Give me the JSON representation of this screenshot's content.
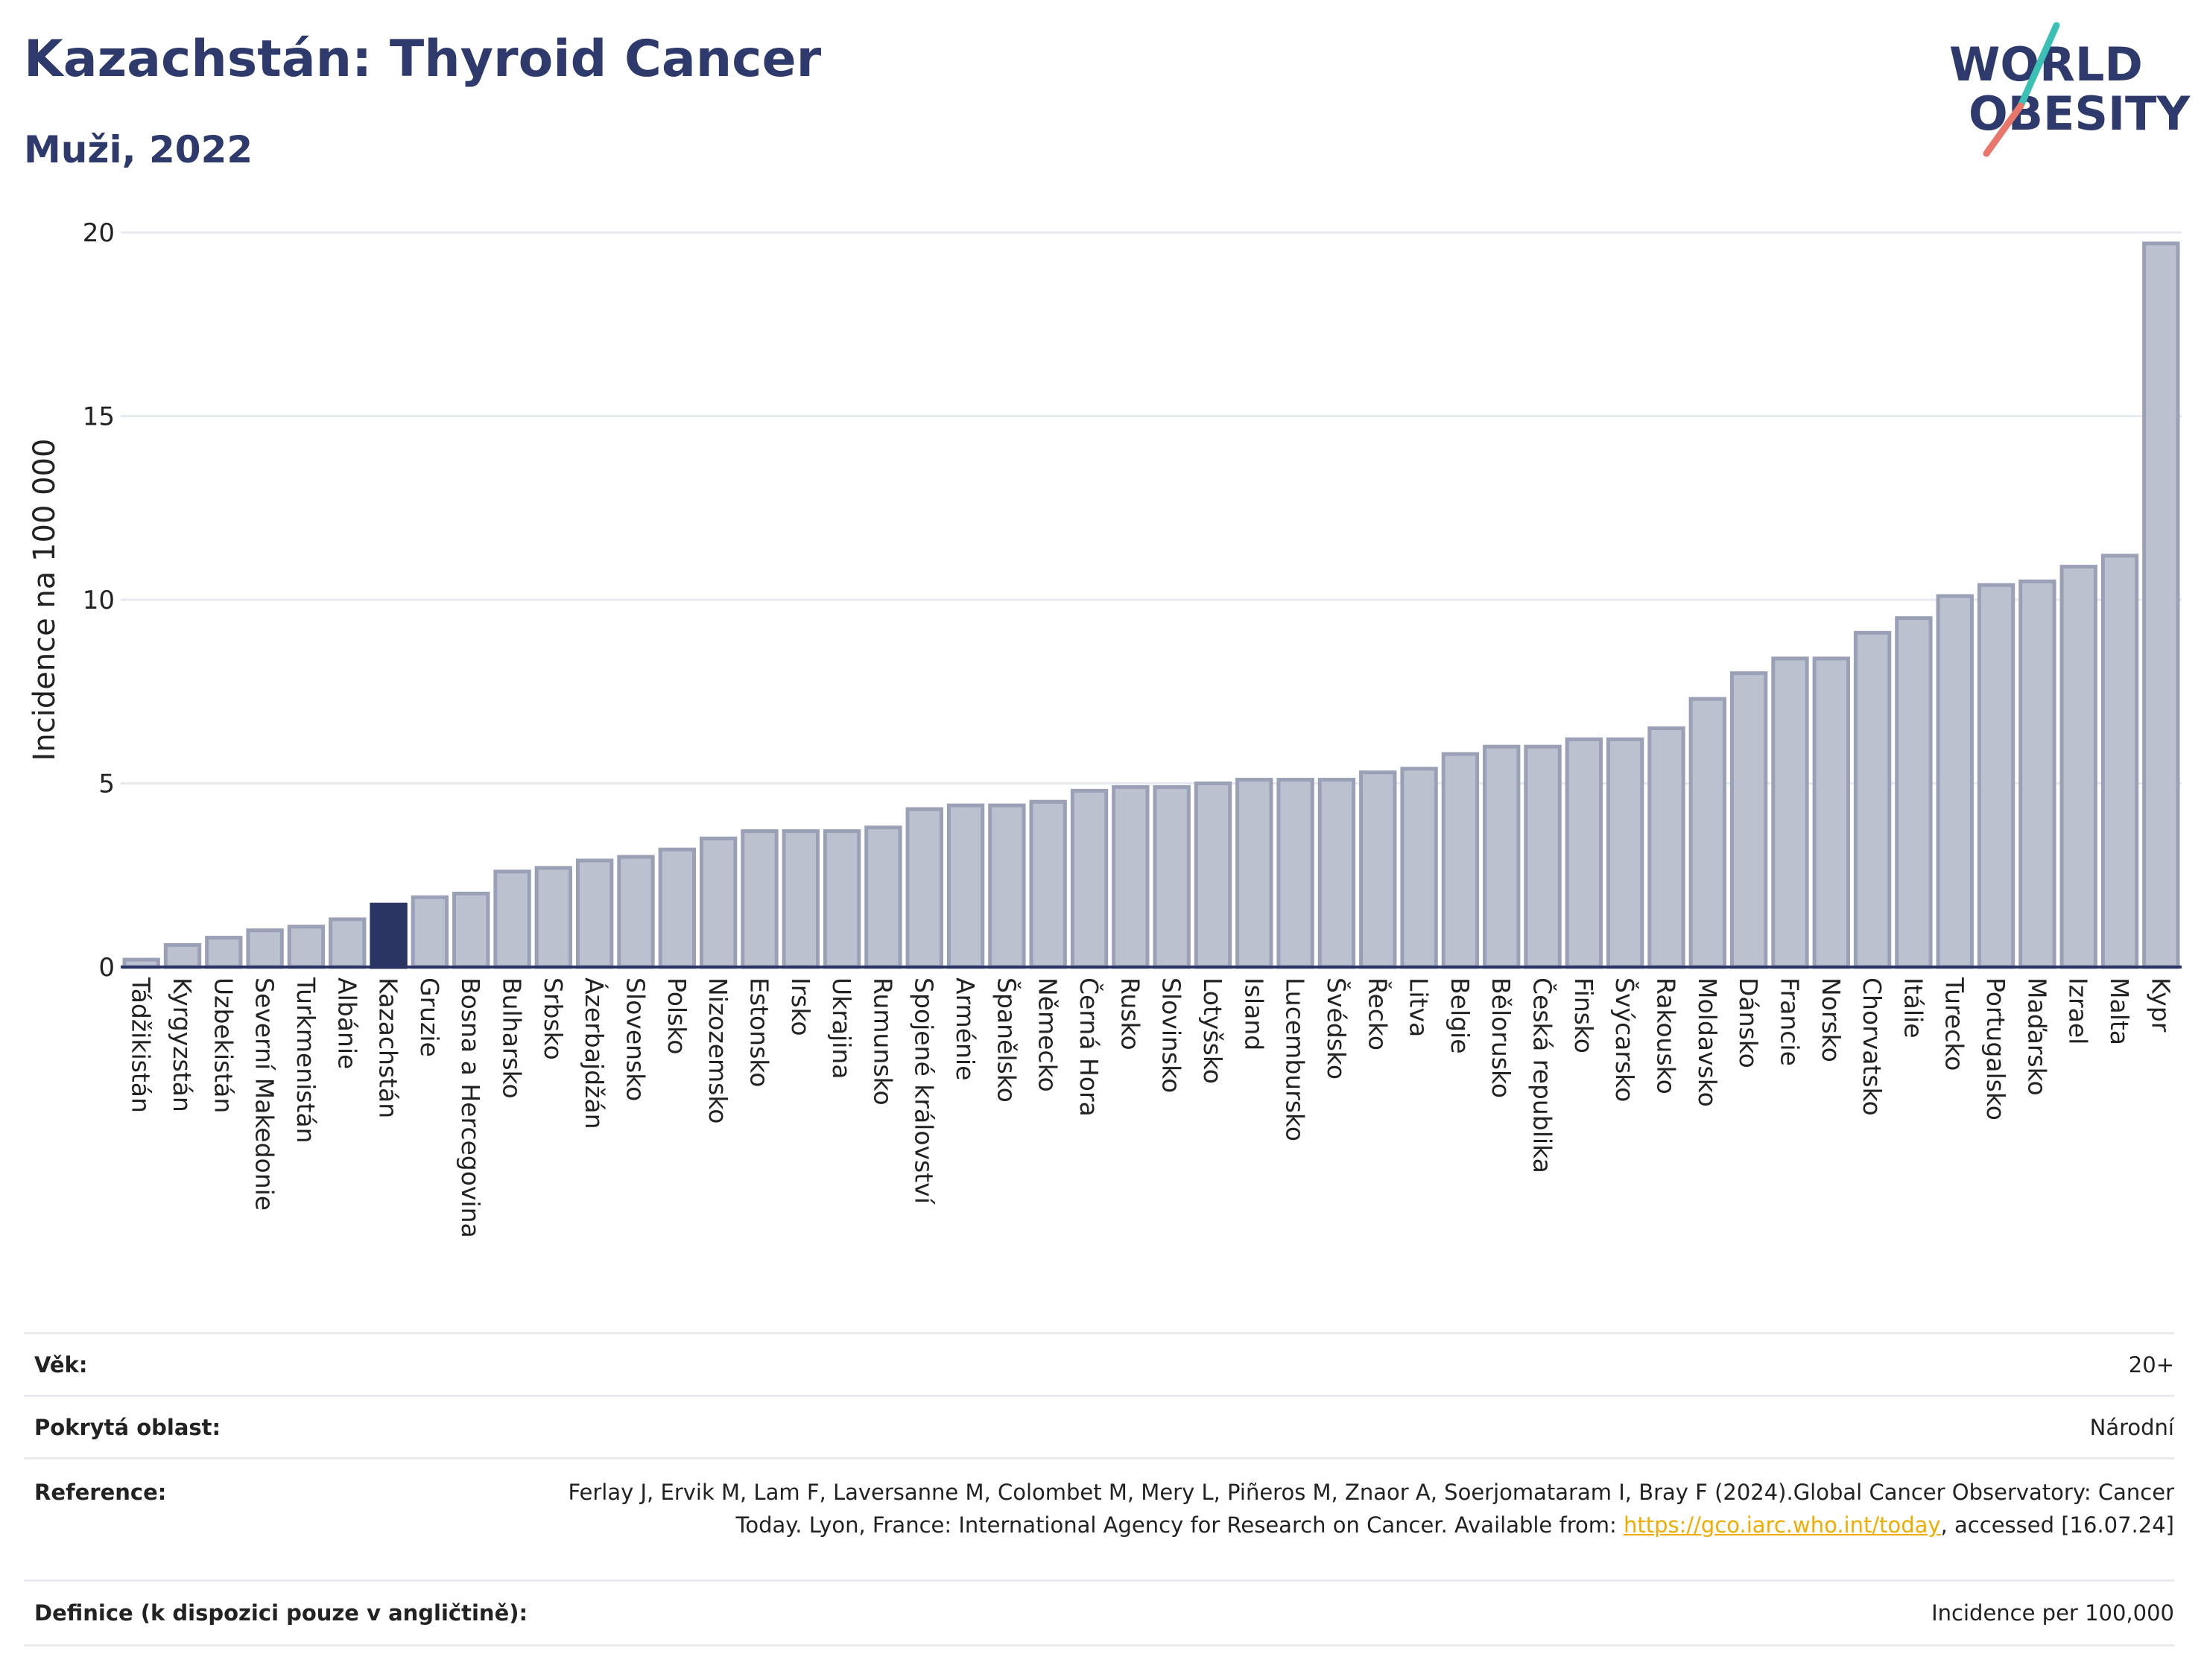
{
  "header": {
    "title": "Kazachstán: Thyroid Cancer",
    "subtitle": "Muži, 2022",
    "logo_line1": "WORLD",
    "logo_line2": "OBESITY"
  },
  "colors": {
    "bar": "#bcc1cf",
    "bar_stroke": "#9aa1b7",
    "highlight": "#2b3563",
    "title": "#2e3a6b",
    "grid": "#e6e9f0",
    "logo_teal": "#3cbfb4",
    "logo_coral": "#e8766a"
  },
  "chart_data": {
    "type": "bar",
    "ylabel": "Incidence na 100 000",
    "ylim": [
      0,
      20
    ],
    "yticks": [
      0,
      5,
      10,
      15,
      20
    ],
    "grid": true,
    "highlight": "Kazachstán",
    "categories": [
      "Tádžikistán",
      "Kyrgyzstán",
      "Uzbekistán",
      "Severní Makedonie",
      "Turkmenistán",
      "Albánie",
      "Kazachstán",
      "Gruzie",
      "Bosna a Hercegovina",
      "Bulharsko",
      "Srbsko",
      "Ázerbajdžán",
      "Slovensko",
      "Polsko",
      "Nizozemsko",
      "Estonsko",
      "Irsko",
      "Ukrajina",
      "Rumunsko",
      "Spojené království",
      "Arménie",
      "Španělsko",
      "Německo",
      "Černá Hora",
      "Rusko",
      "Slovinsko",
      "Lotyšsko",
      "Island",
      "Lucembursko",
      "Švédsko",
      "Řecko",
      "Litva",
      "Belgie",
      "Bělorusko",
      "Česká republika",
      "Finsko",
      "Švýcarsko",
      "Rakousko",
      "Moldavsko",
      "Dánsko",
      "Francie",
      "Norsko",
      "Chorvatsko",
      "Itálie",
      "Turecko",
      "Portugalsko",
      "Maďarsko",
      "Izrael",
      "Malta",
      "Kypr"
    ],
    "values": [
      0.2,
      0.6,
      0.8,
      1.0,
      1.1,
      1.3,
      1.7,
      1.9,
      2.0,
      2.6,
      2.7,
      2.9,
      3.0,
      3.2,
      3.5,
      3.7,
      3.7,
      3.7,
      3.8,
      4.3,
      4.4,
      4.4,
      4.5,
      4.8,
      4.9,
      4.9,
      5.0,
      5.1,
      5.1,
      5.1,
      5.3,
      5.4,
      5.8,
      6.0,
      6.0,
      6.2,
      6.2,
      6.5,
      7.3,
      8.0,
      8.4,
      8.4,
      9.1,
      9.5,
      10.1,
      10.4,
      10.5,
      10.9,
      11.2,
      19.7
    ]
  },
  "meta": {
    "age_label": "Věk:",
    "age_value": "20+",
    "area_label": "Pokrytá oblast:",
    "area_value": "Národní",
    "ref_label": "Reference:",
    "ref_text1": "Ferlay J, Ervik M, Lam F, Laversanne M, Colombet M, Mery L, Piñeros M, Znaor A, Soerjomataram I, Bray F (2024).Global Cancer Observatory: Cancer Today. Lyon, France: International Agency for Research on Cancer. Available from: ",
    "ref_link": "https://gco.iarc.who.int/today",
    "ref_text2": ", accessed [16.07.24]",
    "def_label": "Definice (k dispozici pouze v angličtině):",
    "def_value": "Incidence per 100,000"
  }
}
